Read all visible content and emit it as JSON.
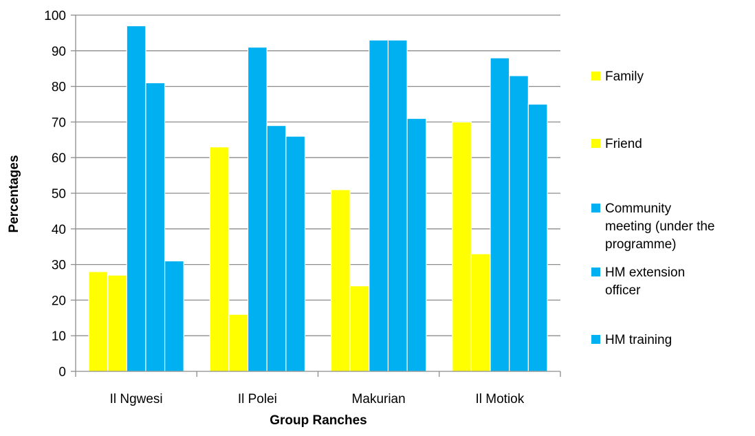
{
  "chart_data": {
    "type": "bar",
    "title": "",
    "xlabel": "Group Ranches",
    "ylabel": "Percentages",
    "ylim": [
      0,
      100
    ],
    "yticks": [
      0,
      10,
      20,
      30,
      40,
      50,
      60,
      70,
      80,
      90,
      100
    ],
    "grid": true,
    "legend_position": "right",
    "categories": [
      "Il Ngwesi",
      "Il Polei",
      "Makurian",
      "Il Motiok"
    ],
    "series": [
      {
        "name": "Family",
        "color": "#FFFF00",
        "values": [
          28,
          63,
          51,
          70
        ]
      },
      {
        "name": "Friend",
        "color": "#FFFF00",
        "values": [
          27,
          16,
          24,
          33
        ]
      },
      {
        "name": "Community meeting (under the programme)",
        "color": "#00B0F0",
        "values": [
          97,
          91,
          93,
          88
        ]
      },
      {
        "name": "HM extension officer",
        "color": "#00B0F0",
        "values": [
          81,
          69,
          93,
          83
        ]
      },
      {
        "name": "HM training",
        "color": "#00B0F0",
        "values": [
          31,
          66,
          71,
          75
        ]
      }
    ],
    "legend_lines": [
      [
        "Family"
      ],
      [
        "Friend"
      ],
      [
        "Community",
        "meeting (under the",
        "programme)"
      ],
      [
        "HM extension",
        "officer"
      ],
      [
        "HM training"
      ]
    ]
  }
}
